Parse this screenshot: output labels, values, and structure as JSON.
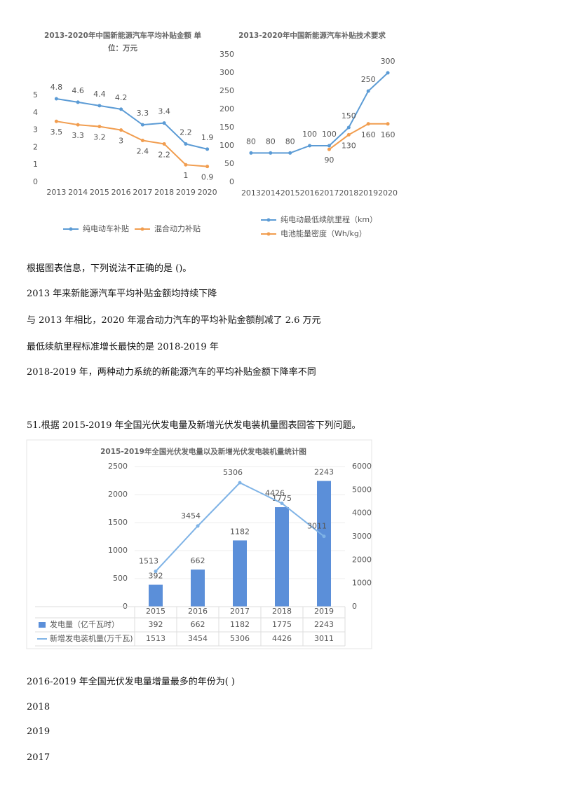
{
  "chart_data": [
    {
      "type": "line",
      "title": "2013-2020年中国新能源汽车平均补贴金额 单位：万元",
      "categories": [
        "2013",
        "2014",
        "2015",
        "2016",
        "2017",
        "2018",
        "2019",
        "2020"
      ],
      "series": [
        {
          "name": "纯电动车补贴",
          "color": "#5b9bd5",
          "values": [
            4.8,
            4.6,
            4.4,
            4.2,
            3.3,
            3.4,
            2.2,
            1.9
          ]
        },
        {
          "name": "混合动力补贴",
          "color": "#f19d4f",
          "values": [
            3.5,
            3.3,
            3.2,
            3,
            2.4,
            2.2,
            1,
            0.9
          ]
        }
      ],
      "ylim": [
        0,
        5
      ],
      "yticks": [
        0,
        1,
        2,
        3,
        4,
        5
      ],
      "grid": false,
      "legend": "bottom"
    },
    {
      "type": "line",
      "title": "2013-2020年中国新能源汽车补贴技术要求",
      "categories": [
        "2013",
        "2014",
        "2015",
        "2016",
        "2017",
        "2018",
        "2019",
        "2020"
      ],
      "series": [
        {
          "name": "纯电动最低续航里程（km）",
          "color": "#5b9bd5",
          "values": [
            80,
            80,
            80,
            100,
            100,
            150,
            250,
            300
          ]
        },
        {
          "name": "电池能量密度（Wh/kg）",
          "color": "#f19d4f",
          "values": [
            null,
            null,
            null,
            null,
            90,
            130,
            160,
            160
          ]
        }
      ],
      "ylim": [
        0,
        350
      ],
      "yticks": [
        0,
        50,
        100,
        150,
        200,
        250,
        300,
        350
      ],
      "grid": false,
      "legend": "bottom"
    },
    {
      "type": "combo",
      "title": "2015-2019年全国光伏发电量以及新增光伏发电装机量统计图",
      "categories": [
        "2015",
        "2016",
        "2017",
        "2018",
        "2019"
      ],
      "series": [
        {
          "name": "发电量（亿千瓦时）",
          "type": "bar",
          "color": "#5b8fd9",
          "values": [
            392,
            662,
            1182,
            1775,
            2243
          ]
        },
        {
          "name": "新增发电装机量(万千瓦)",
          "type": "line",
          "axis": "y2",
          "color": "#7fb3e6",
          "values": [
            1513,
            3454,
            5306,
            4426,
            3011
          ]
        }
      ],
      "ylim": [
        0,
        2500
      ],
      "yticks": [
        0,
        500,
        1000,
        1500,
        2000,
        2500
      ],
      "y2lim": [
        0,
        6000
      ],
      "y2ticks": [
        0,
        1000,
        2000,
        3000,
        4000,
        5000,
        6000
      ],
      "grid": true,
      "legend": "table"
    }
  ],
  "document": {
    "paragraphs": [
      "根据图表信息，下列说法不正确的是 ()。",
      "2013 年来新能源汽车平均补贴金额均持续下降",
      "与 2013 年相比，2020 年混合动力汽车的平均补贴金额削减了 2.6 万元",
      "最低续航里程标准增长最快的是 2018-2019 年",
      "2018-2019 年，两种动力系统的新能源汽车的平均补贴金额下降率不同",
      "51.根据 2015-2019 年全国光伏发电量及新增光伏发电装机量图表回答下列问题。",
      "2016-2019 年全国光伏发电量增量最多的年份为(    )",
      "2018",
      "2019",
      "2017"
    ]
  }
}
